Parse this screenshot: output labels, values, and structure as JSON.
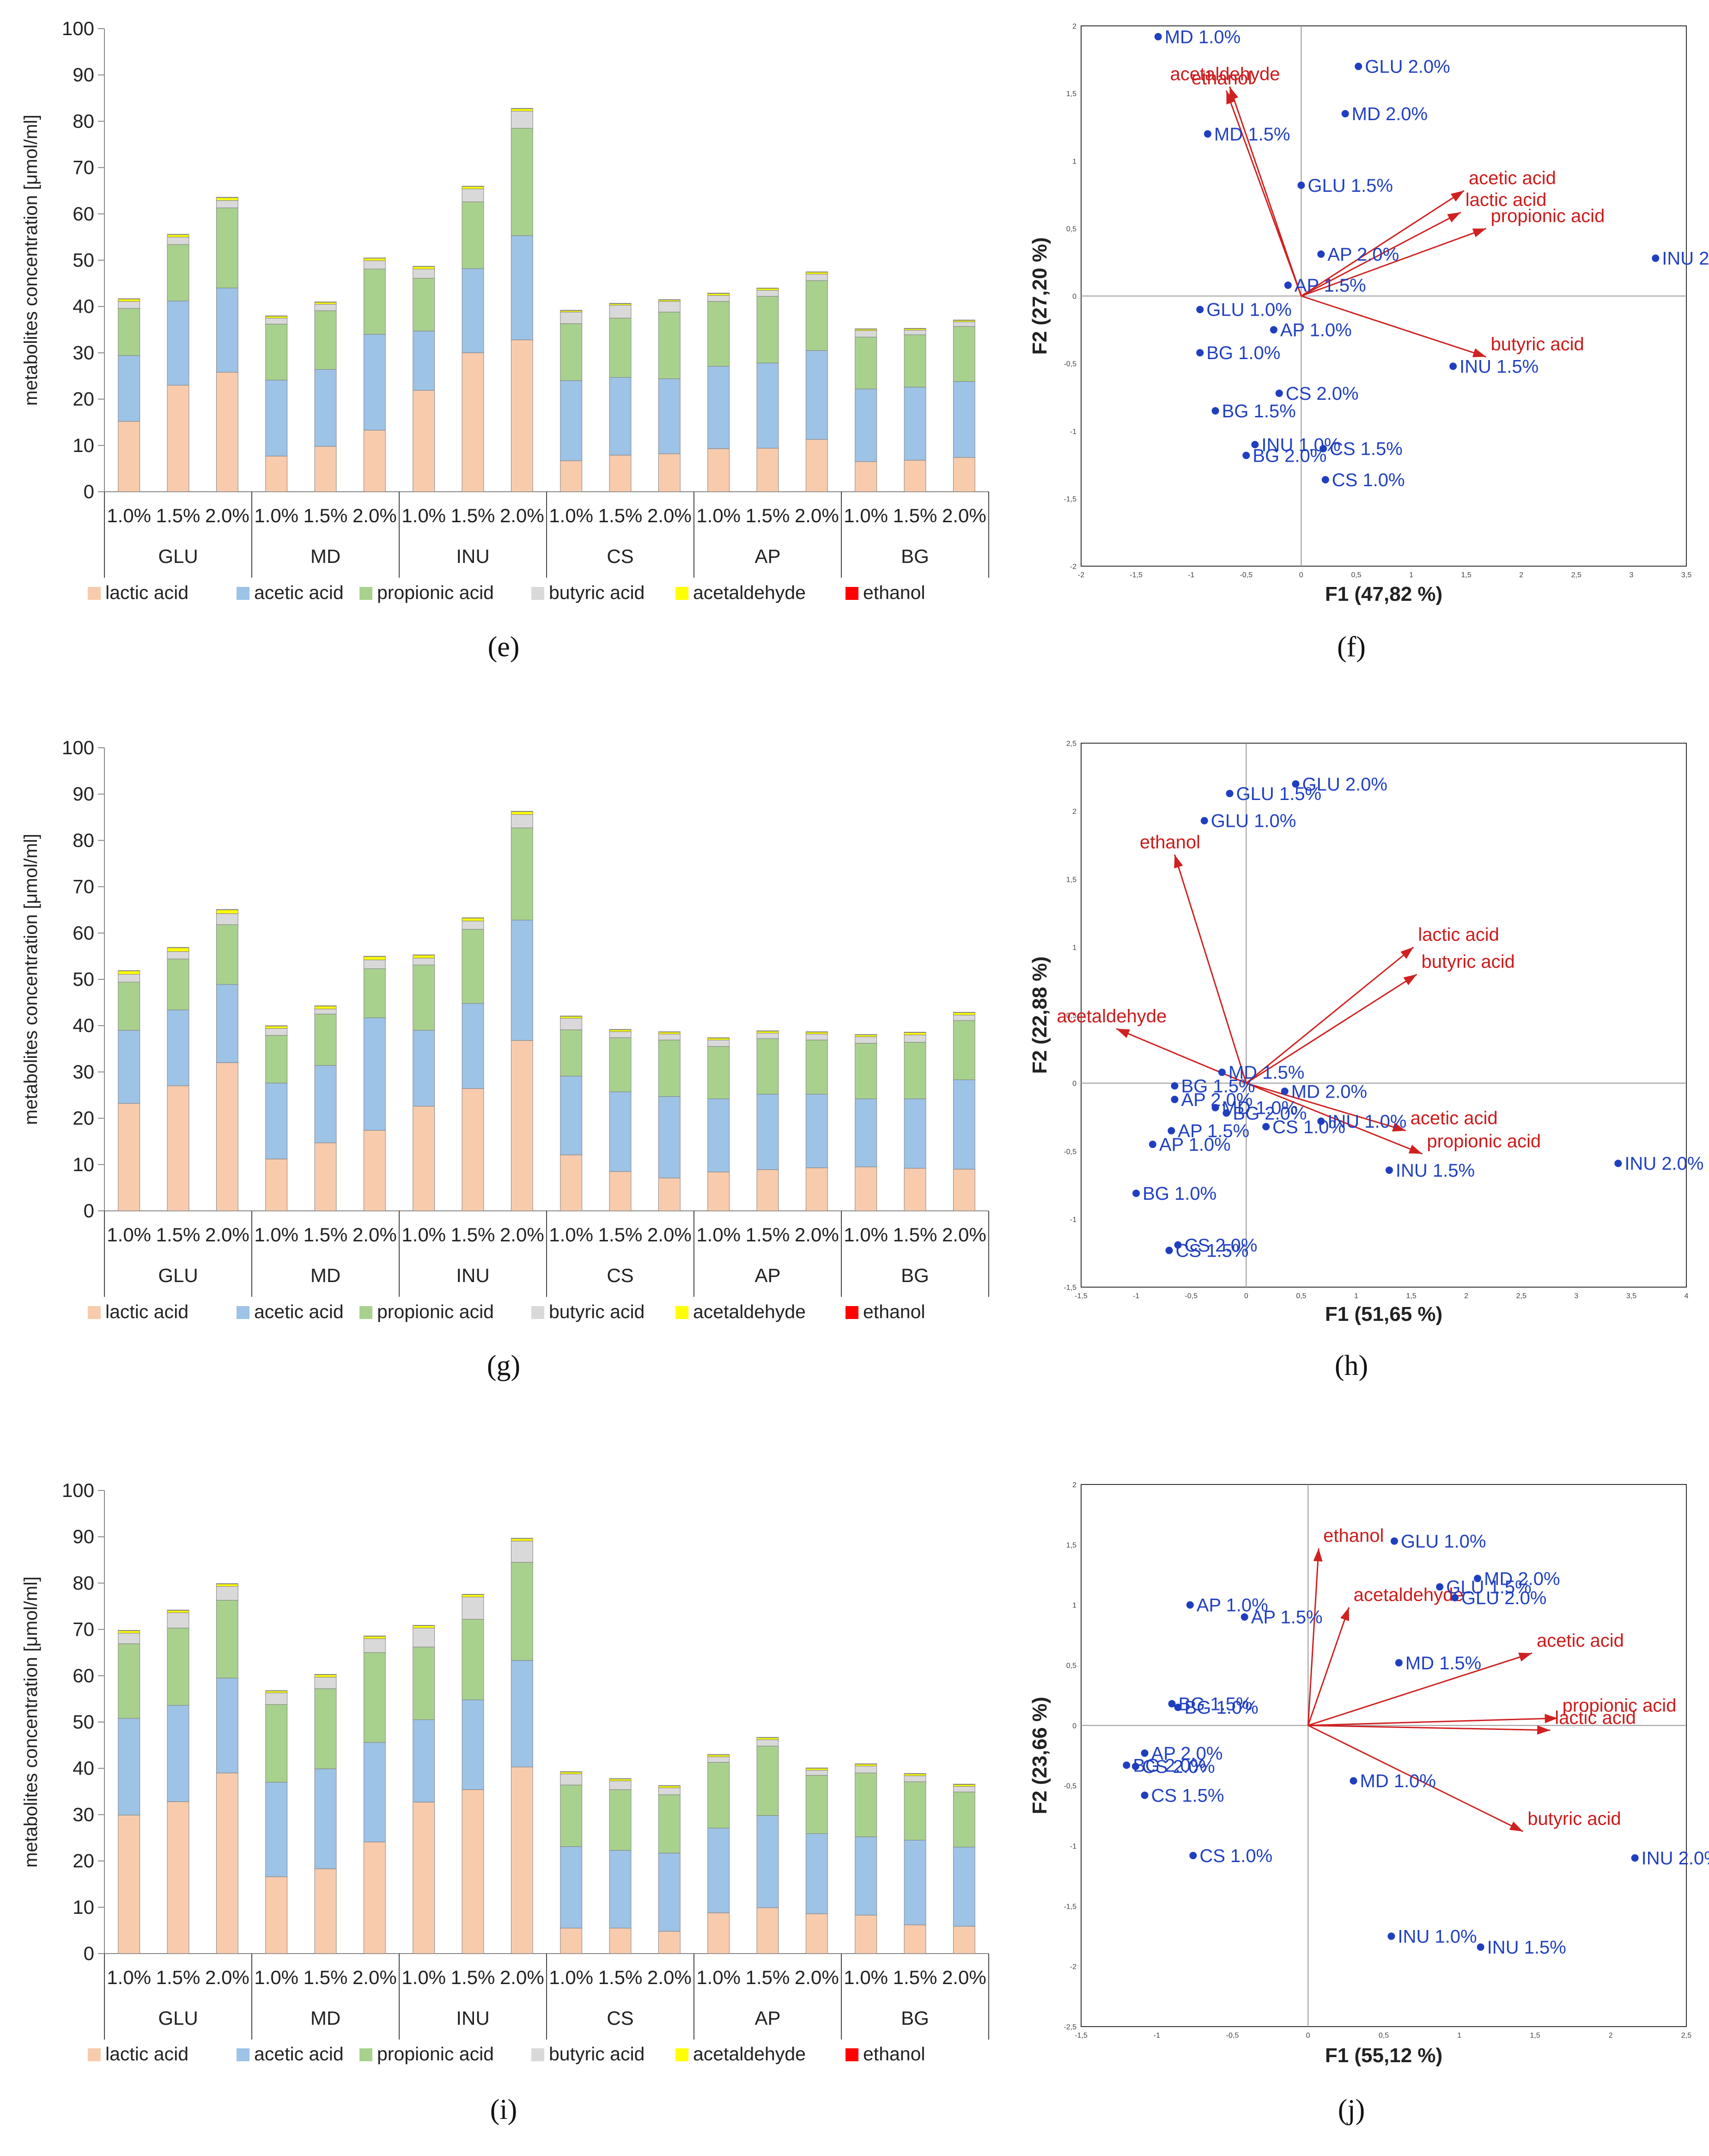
{
  "categories_top": [
    "1.0%",
    "1.5%",
    "2.0%"
  ],
  "groups": [
    "GLU",
    "MD",
    "INU",
    "CS",
    "AP",
    "BG"
  ],
  "series_names": [
    "lactic acid",
    "acetic acid",
    "propionic acid",
    "butyric acid",
    "acetaldehyde",
    "ethanol"
  ],
  "colors": {
    "lactic acid": "#f8cbad",
    "acetic acid": "#9dc3e6",
    "propionic acid": "#a9d18e",
    "butyric acid": "#d9d9d9",
    "acetaldehyde": "#ffff00",
    "ethanol": "#ff0000",
    "point": "#1f3fbf",
    "vector": "#d02020"
  },
  "ylabel": "metabolites concentration [μmol/ml]",
  "captions": {
    "e": "(e)",
    "f": "(f)",
    "g": "(g)",
    "h": "(h)",
    "i": "(i)",
    "j": "(j)"
  },
  "chart_data": [
    {
      "id": "e",
      "type": "bar",
      "stacked": true,
      "ylabel": "metabolites concentration [μmol/ml]",
      "ylim": [
        0,
        100
      ],
      "yticks": [
        0,
        10,
        20,
        30,
        40,
        50,
        60,
        70,
        80,
        90,
        100
      ],
      "groups": [
        "GLU",
        "MD",
        "INU",
        "CS",
        "AP",
        "BG"
      ],
      "subcategories": [
        "1.0%",
        "1.5%",
        "2.0%"
      ],
      "series": [
        {
          "name": "lactic acid",
          "values": [
            15.2,
            23.0,
            25.8,
            7.7,
            9.8,
            13.3,
            21.9,
            30.0,
            32.8,
            6.7,
            7.9,
            8.2,
            9.3,
            9.4,
            11.3,
            6.5,
            6.8,
            7.4
          ]
        },
        {
          "name": "acetic acid",
          "values": [
            14.2,
            18.2,
            18.2,
            16.4,
            16.6,
            20.7,
            12.8,
            18.2,
            22.5,
            17.3,
            16.8,
            16.2,
            17.8,
            18.4,
            19.2,
            15.7,
            15.8,
            16.4
          ]
        },
        {
          "name": "propionic acid",
          "values": [
            10.2,
            12.2,
            17.3,
            12.1,
            12.7,
            14.1,
            11.4,
            14.4,
            23.2,
            12.3,
            12.8,
            14.4,
            14.0,
            14.4,
            15.1,
            11.2,
            11.3,
            11.9
          ]
        },
        {
          "name": "butyric acid",
          "values": [
            1.5,
            1.6,
            1.6,
            1.3,
            1.4,
            1.8,
            2.0,
            2.8,
            3.7,
            2.5,
            2.8,
            2.3,
            1.3,
            1.3,
            1.4,
            1.4,
            1.0,
            1.0
          ]
        },
        {
          "name": "acetaldehyde",
          "values": [
            0.5,
            0.5,
            0.6,
            0.4,
            0.4,
            0.5,
            0.5,
            0.5,
            0.5,
            0.3,
            0.3,
            0.3,
            0.4,
            0.4,
            0.4,
            0.3,
            0.3,
            0.3
          ]
        },
        {
          "name": "ethanol",
          "values": [
            0.1,
            0.1,
            0.1,
            0.1,
            0.1,
            0.1,
            0.1,
            0.1,
            0.1,
            0.1,
            0.1,
            0.1,
            0.1,
            0.1,
            0.1,
            0.1,
            0.1,
            0.1
          ]
        }
      ],
      "legend": "bottom"
    },
    {
      "id": "f",
      "type": "scatter",
      "subtype": "biplot",
      "xlabel": "F1 (47,82 %)",
      "ylabel": "F2 (27,20 %)",
      "xlim": [
        -2,
        3.5
      ],
      "ylim": [
        -2,
        2
      ],
      "xticks": [
        "-2",
        "-1,5",
        "-1",
        "-0,5",
        "0",
        "0,5",
        "1",
        "1,5",
        "2",
        "2,5",
        "3",
        "3,5"
      ],
      "yticks": [
        "-2",
        "-1,5",
        "-1",
        "-0,5",
        "0",
        "0,5",
        "1",
        "1,5",
        "2"
      ],
      "points": [
        {
          "label": "MD 1.0%",
          "x": -1.3,
          "y": 1.92
        },
        {
          "label": "GLU 2.0%",
          "x": 0.52,
          "y": 1.7
        },
        {
          "label": "MD 1.5%",
          "x": -0.85,
          "y": 1.2
        },
        {
          "label": "MD 2.0%",
          "x": 0.4,
          "y": 1.35
        },
        {
          "label": "GLU 1.5%",
          "x": 0.0,
          "y": 0.82
        },
        {
          "label": "AP 2.0%",
          "x": 0.18,
          "y": 0.31
        },
        {
          "label": "AP 1.5%",
          "x": -0.12,
          "y": 0.08
        },
        {
          "label": "INU 2.0%",
          "x": 3.22,
          "y": 0.28
        },
        {
          "label": "GLU 1.0%",
          "x": -0.92,
          "y": -0.1
        },
        {
          "label": "AP 1.0%",
          "x": -0.25,
          "y": -0.25
        },
        {
          "label": "BG 1.0%",
          "x": -0.92,
          "y": -0.42
        },
        {
          "label": "CS 2.0%",
          "x": -0.2,
          "y": -0.72
        },
        {
          "label": "INU 1.5%",
          "x": 1.38,
          "y": -0.52
        },
        {
          "label": "BG 1.5%",
          "x": -0.78,
          "y": -0.85
        },
        {
          "label": "INU 1.0%",
          "x": -0.42,
          "y": -1.1
        },
        {
          "label": "BG 2.0%",
          "x": -0.5,
          "y": -1.18
        },
        {
          "label": "CS 1.5%",
          "x": 0.2,
          "y": -1.13
        },
        {
          "label": "CS 1.0%",
          "x": 0.22,
          "y": -1.36
        }
      ],
      "vectors": [
        {
          "label": "ethanol",
          "x": -0.68,
          "y": 1.52
        },
        {
          "label": "acetaldehyde",
          "x": -0.65,
          "y": 1.55
        },
        {
          "label": "acetic acid",
          "x": 1.48,
          "y": 0.78
        },
        {
          "label": "lactic acid",
          "x": 1.45,
          "y": 0.62
        },
        {
          "label": "propionic acid",
          "x": 1.68,
          "y": 0.5
        },
        {
          "label": "butyric acid",
          "x": 1.68,
          "y": -0.45
        }
      ]
    },
    {
      "id": "g",
      "type": "bar",
      "stacked": true,
      "ylabel": "metabolites concentration [μmol/ml]",
      "ylim": [
        0,
        100
      ],
      "yticks": [
        0,
        10,
        20,
        30,
        40,
        50,
        60,
        70,
        80,
        90,
        100
      ],
      "groups": [
        "GLU",
        "MD",
        "INU",
        "CS",
        "AP",
        "BG"
      ],
      "subcategories": [
        "1.0%",
        "1.5%",
        "2.0%"
      ],
      "series": [
        {
          "name": "lactic acid",
          "values": [
            23.2,
            27.0,
            32.0,
            11.2,
            14.7,
            17.4,
            22.6,
            26.4,
            36.8,
            12.1,
            8.5,
            7.1,
            8.4,
            8.9,
            9.3,
            9.5,
            9.2,
            9.0
          ]
        },
        {
          "name": "acetic acid",
          "values": [
            15.8,
            16.4,
            16.9,
            16.4,
            16.7,
            24.3,
            16.4,
            18.4,
            26.0,
            17.0,
            17.2,
            17.6,
            15.8,
            16.3,
            15.9,
            14.7,
            15.0,
            19.3
          ]
        },
        {
          "name": "propionic acid",
          "values": [
            10.4,
            11.0,
            12.9,
            10.3,
            11.1,
            10.6,
            14.1,
            16.0,
            19.9,
            10.0,
            11.7,
            12.2,
            11.3,
            12.0,
            11.7,
            12.0,
            12.2,
            12.8
          ]
        },
        {
          "name": "butyric acid",
          "values": [
            1.7,
            1.6,
            2.4,
            1.5,
            1.1,
            1.9,
            1.5,
            1.8,
            2.9,
            2.5,
            1.3,
            1.3,
            1.4,
            1.2,
            1.3,
            1.4,
            1.6,
            1.2
          ]
        },
        {
          "name": "acetaldehyde",
          "values": [
            0.7,
            0.8,
            0.8,
            0.5,
            0.6,
            0.7,
            0.6,
            0.6,
            0.6,
            0.4,
            0.4,
            0.4,
            0.4,
            0.4,
            0.4,
            0.4,
            0.5,
            0.5
          ]
        },
        {
          "name": "ethanol",
          "values": [
            0.1,
            0.1,
            0.1,
            0.1,
            0.1,
            0.1,
            0.1,
            0.1,
            0.1,
            0.1,
            0.1,
            0.1,
            0.1,
            0.1,
            0.1,
            0.1,
            0.1,
            0.1
          ]
        }
      ],
      "legend": "bottom"
    },
    {
      "id": "h",
      "type": "scatter",
      "subtype": "biplot",
      "xlabel": "F1 (51,65 %)",
      "ylabel": "F2 (22,88 %)",
      "xlim": [
        -1.5,
        4
      ],
      "ylim": [
        -1.5,
        2.5
      ],
      "xticks": [
        "-1,5",
        "-1",
        "-0,5",
        "0",
        "0,5",
        "1",
        "1,5",
        "2",
        "2,5",
        "3",
        "3,5",
        "4"
      ],
      "yticks": [
        "-1,5",
        "-1",
        "-0,5",
        "0",
        "0,5",
        "1",
        "1,5",
        "2",
        "2,5"
      ],
      "points": [
        {
          "label": "GLU 2.0%",
          "x": 0.45,
          "y": 2.2
        },
        {
          "label": "GLU 1.5%",
          "x": -0.15,
          "y": 2.13
        },
        {
          "label": "GLU 1.0%",
          "x": -0.38,
          "y": 1.93
        },
        {
          "label": "MD 1.5%",
          "x": -0.22,
          "y": 0.08
        },
        {
          "label": "BG 1.5%",
          "x": -0.65,
          "y": -0.02
        },
        {
          "label": "MD 2.0%",
          "x": 0.35,
          "y": -0.06
        },
        {
          "label": "AP 2.0%",
          "x": -0.65,
          "y": -0.12
        },
        {
          "label": "MD 1.0%",
          "x": -0.28,
          "y": -0.18
        },
        {
          "label": "AP 1.5%",
          "x": -0.68,
          "y": -0.35
        },
        {
          "label": "BG 2.0%",
          "x": -0.18,
          "y": -0.22
        },
        {
          "label": "INU 1.0%",
          "x": 0.68,
          "y": -0.28
        },
        {
          "label": "CS 1.0%",
          "x": 0.18,
          "y": -0.32
        },
        {
          "label": "AP 1.0%",
          "x": -0.85,
          "y": -0.45
        },
        {
          "label": "INU 1.5%",
          "x": 1.3,
          "y": -0.64
        },
        {
          "label": "INU 2.0%",
          "x": 3.38,
          "y": -0.59
        },
        {
          "label": "BG 1.0%",
          "x": -1.0,
          "y": -0.81
        },
        {
          "label": "CS 2.0%",
          "x": -0.62,
          "y": -1.19
        },
        {
          "label": "CS 1.5%",
          "x": -0.7,
          "y": -1.23
        }
      ],
      "vectors": [
        {
          "label": "ethanol",
          "x": -0.65,
          "y": 1.68
        },
        {
          "label": "lactic acid",
          "x": 1.52,
          "y": 1.0
        },
        {
          "label": "butyric acid",
          "x": 1.55,
          "y": 0.8
        },
        {
          "label": "acetaldehyde",
          "x": -1.18,
          "y": 0.4
        },
        {
          "label": "acetic acid",
          "x": 1.45,
          "y": -0.35
        },
        {
          "label": "propionic acid",
          "x": 1.6,
          "y": -0.52
        }
      ]
    },
    {
      "id": "i",
      "type": "bar",
      "stacked": true,
      "ylabel": "metabolites concentration [μmol/ml]",
      "ylim": [
        0,
        100
      ],
      "yticks": [
        0,
        10,
        20,
        30,
        40,
        50,
        60,
        70,
        80,
        90,
        100
      ],
      "groups": [
        "GLU",
        "MD",
        "INU",
        "CS",
        "AP",
        "BG"
      ],
      "subcategories": [
        "1.0%",
        "1.5%",
        "2.0%"
      ],
      "series": [
        {
          "name": "lactic acid",
          "values": [
            29.9,
            32.8,
            39.0,
            16.6,
            18.3,
            24.1,
            32.7,
            35.4,
            40.3,
            5.5,
            5.5,
            4.8,
            8.8,
            9.9,
            8.6,
            8.3,
            6.2,
            5.9
          ]
        },
        {
          "name": "acetic acid",
          "values": [
            20.9,
            20.8,
            20.5,
            20.4,
            21.6,
            21.5,
            17.8,
            19.4,
            23.0,
            17.6,
            16.8,
            16.9,
            18.3,
            19.9,
            17.3,
            16.9,
            18.3,
            17.1
          ]
        },
        {
          "name": "propionic acid",
          "values": [
            16.1,
            16.7,
            16.8,
            16.8,
            17.3,
            19.4,
            15.7,
            17.4,
            21.2,
            13.3,
            13.1,
            12.6,
            14.2,
            15.0,
            12.6,
            13.8,
            12.6,
            11.9
          ]
        },
        {
          "name": "butyric acid",
          "values": [
            2.3,
            3.3,
            3.0,
            2.5,
            2.5,
            3.0,
            4.1,
            4.8,
            4.6,
            2.4,
            1.9,
            1.5,
            1.2,
            1.4,
            1.1,
            1.5,
            1.3,
            1.2
          ]
        },
        {
          "name": "acetaldehyde",
          "values": [
            0.5,
            0.5,
            0.5,
            0.4,
            0.5,
            0.5,
            0.5,
            0.5,
            0.5,
            0.4,
            0.4,
            0.4,
            0.4,
            0.4,
            0.4,
            0.4,
            0.4,
            0.4
          ]
        },
        {
          "name": "ethanol",
          "values": [
            0.1,
            0.1,
            0.1,
            0.1,
            0.1,
            0.1,
            0.1,
            0.1,
            0.1,
            0.1,
            0.1,
            0.1,
            0.1,
            0.1,
            0.1,
            0.1,
            0.1,
            0.1
          ]
        }
      ],
      "legend": "bottom"
    },
    {
      "id": "j",
      "type": "scatter",
      "subtype": "biplot",
      "xlabel": "F1 (55,12 %)",
      "ylabel": "F2 (23,66 %)",
      "xlim": [
        -1.5,
        2.5
      ],
      "ylim": [
        -2.5,
        2
      ],
      "xticks": [
        "-1,5",
        "-1",
        "-0,5",
        "0",
        "0,5",
        "1",
        "1,5",
        "2",
        "2,5"
      ],
      "yticks": [
        "-2,5",
        "-2",
        "-1,5",
        "-1",
        "-0,5",
        "0",
        "0,5",
        "1",
        "1,5",
        "2"
      ],
      "points": [
        {
          "label": "GLU 1.0%",
          "x": 0.57,
          "y": 1.53
        },
        {
          "label": "MD 2.0%",
          "x": 1.12,
          "y": 1.22
        },
        {
          "label": "GLU 1.5%",
          "x": 0.87,
          "y": 1.15
        },
        {
          "label": "GLU 2.0%",
          "x": 0.97,
          "y": 1.06
        },
        {
          "label": "AP 1.0%",
          "x": -0.78,
          "y": 1.0
        },
        {
          "label": "AP 1.5%",
          "x": -0.42,
          "y": 0.9
        },
        {
          "label": "MD 1.5%",
          "x": 0.6,
          "y": 0.52
        },
        {
          "label": "BG 1.5%",
          "x": -0.9,
          "y": 0.18
        },
        {
          "label": "BG 1.0%",
          "x": -0.86,
          "y": 0.15
        },
        {
          "label": "AP 2.0%",
          "x": -1.08,
          "y": -0.23
        },
        {
          "label": "BG 2.0%",
          "x": -1.2,
          "y": -0.33
        },
        {
          "label": "CS 2.0%",
          "x": -1.14,
          "y": -0.34
        },
        {
          "label": "MD 1.0%",
          "x": 0.3,
          "y": -0.46
        },
        {
          "label": "CS 1.5%",
          "x": -1.08,
          "y": -0.58
        },
        {
          "label": "CS 1.0%",
          "x": -0.76,
          "y": -1.08
        },
        {
          "label": "INU 2.0%",
          "x": 2.16,
          "y": -1.1
        },
        {
          "label": "INU 1.0%",
          "x": 0.55,
          "y": -1.75
        },
        {
          "label": "INU 1.5%",
          "x": 1.14,
          "y": -1.84
        }
      ],
      "vectors": [
        {
          "label": "ethanol",
          "x": 0.07,
          "y": 1.47
        },
        {
          "label": "acetaldehyde",
          "x": 0.27,
          "y": 0.98
        },
        {
          "label": "acetic acid",
          "x": 1.48,
          "y": 0.6
        },
        {
          "label": "propionic acid",
          "x": 1.65,
          "y": 0.06
        },
        {
          "label": "lactic acid",
          "x": 1.6,
          "y": -0.04
        },
        {
          "label": "butyric acid",
          "x": 1.42,
          "y": -0.88
        }
      ]
    }
  ]
}
